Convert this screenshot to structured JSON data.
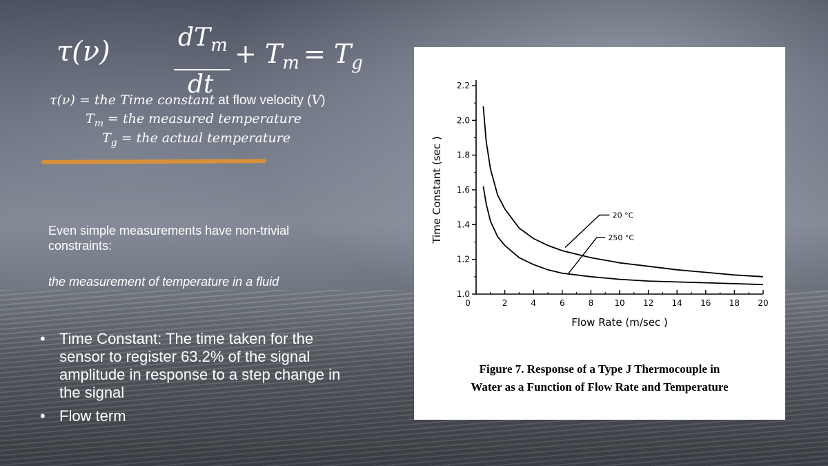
{
  "equation": {
    "tau": "τ(ν)",
    "numerator": "dT",
    "numerator_sub": "m",
    "denominator": "dt",
    "plus": "+ T",
    "plus_sub": "m",
    "equals": "= T",
    "equals_sub": "g"
  },
  "definitions": [
    {
      "math": "τ(ν) = the Time constant",
      "text": " at flow velocity (",
      "var": "V",
      "close": ")"
    },
    {
      "math_lead": "T",
      "sub": "m",
      "math": " = the measured temperature"
    },
    {
      "math_lead": "T",
      "sub": "g",
      "math": " = the actual temperature"
    }
  ],
  "intro": {
    "line1": "Even simple measurements have non-trivial",
    "line2": "constraints:",
    "italic": "the measurement of temperature in a fluid"
  },
  "bullets": [
    {
      "symbol": "•",
      "text": "Time Constant: The time taken for the sensor to register 63.2% of the signal amplitude in response to a step change in the signal"
    },
    {
      "symbol": "•",
      "text": "Flow term"
    }
  ],
  "colors": {
    "accent_line": "#d8913a",
    "text": "#ffffff"
  },
  "chart_data": {
    "type": "line",
    "xlabel": "Flow Rate (m/sec )",
    "ylabel": "Time Constant (sec )",
    "xlim": [
      0,
      20
    ],
    "ylim": [
      1.0,
      2.2
    ],
    "x_ticks": [
      "0",
      "2",
      "4",
      "6",
      "8",
      "10",
      "12",
      "14",
      "16",
      "18",
      "20"
    ],
    "y_ticks": [
      "1.0",
      "1.2",
      "1.4",
      "1.6",
      "1.8",
      "2.0",
      "2.2"
    ],
    "series": [
      {
        "name": "20 °C",
        "x": [
          0.5,
          0.7,
          1,
          1.5,
          2,
          3,
          4,
          5,
          6,
          8,
          10,
          12,
          14,
          16,
          18,
          20
        ],
        "values": [
          2.08,
          1.88,
          1.72,
          1.57,
          1.49,
          1.38,
          1.32,
          1.28,
          1.25,
          1.21,
          1.18,
          1.16,
          1.14,
          1.125,
          1.11,
          1.1
        ]
      },
      {
        "name": "250 °C",
        "x": [
          0.5,
          0.7,
          1,
          1.5,
          2,
          3,
          4,
          5,
          6,
          8,
          10,
          12,
          14,
          16,
          18,
          20
        ],
        "values": [
          1.62,
          1.52,
          1.42,
          1.33,
          1.28,
          1.21,
          1.17,
          1.14,
          1.12,
          1.1,
          1.085,
          1.075,
          1.07,
          1.065,
          1.06,
          1.055
        ]
      }
    ],
    "labels": [
      "20 °C",
      "250 °C"
    ],
    "caption_line1": "Figure 7.  Response of a Type J Thermocouple in",
    "caption_line2": "Water as a Function of Flow Rate and Temperature"
  }
}
